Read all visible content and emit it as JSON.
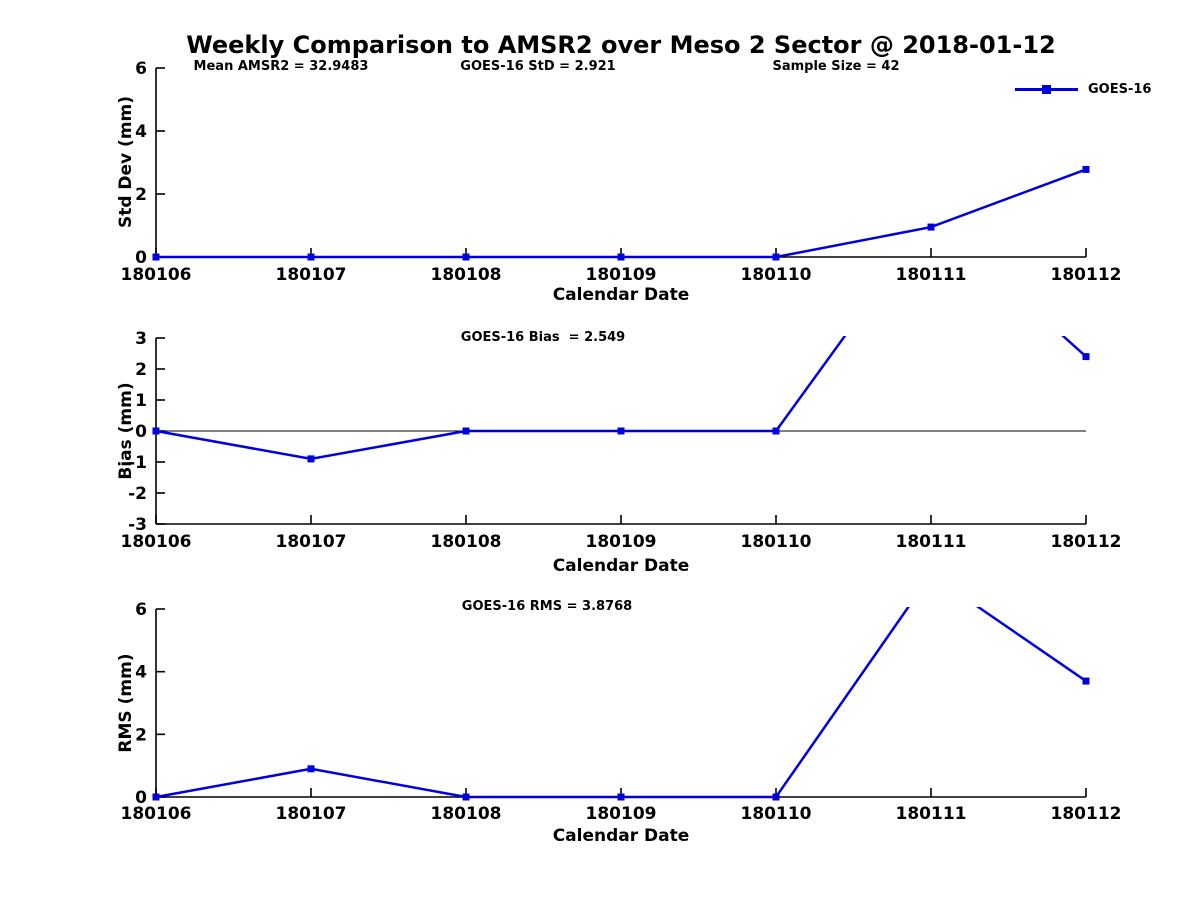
{
  "title": "Weekly Comparison to AMSR2 over Meso 2 Sector @ 2018-01-12",
  "legend": {
    "label": "GOES-16"
  },
  "colors": {
    "series": "#0000DD",
    "axis": "#000000",
    "background": "#FFFFFF"
  },
  "chart_data": [
    {
      "type": "line",
      "name": "std-dev",
      "series": "GOES-16",
      "annotations": [
        "Mean AMSR2 = 32.9483",
        "GOES-16 StD = 2.921",
        "Sample Size = 42"
      ],
      "categories": [
        "180106",
        "180107",
        "180108",
        "180109",
        "180110",
        "180111",
        "180112"
      ],
      "values": [
        0,
        0,
        0,
        0,
        0,
        0.95,
        2.78
      ],
      "xlabel": "Calendar Date",
      "ylabel": "Std Dev (mm)",
      "ylim": [
        0,
        6
      ],
      "yticks": [
        0,
        2,
        4,
        6
      ],
      "grid": false,
      "legend_position": "top-right"
    },
    {
      "type": "line",
      "name": "bias",
      "series": "GOES-16",
      "annotations": [
        "GOES-16 Bias  = 2.549"
      ],
      "categories": [
        "180106",
        "180107",
        "180108",
        "180109",
        "180110",
        "180111",
        "180112"
      ],
      "values": [
        0,
        -0.9,
        0,
        0,
        0,
        6.9,
        2.4
      ],
      "xlabel": "Calendar Date",
      "ylabel": "Bias (mm)",
      "ylim": [
        -3,
        3
      ],
      "yticks": [
        3,
        2,
        1,
        0,
        -1,
        -2,
        -3
      ],
      "zero_line": true,
      "grid": false
    },
    {
      "type": "line",
      "name": "rms",
      "series": "GOES-16",
      "annotations": [
        "GOES-16 RMS = 3.8768"
      ],
      "categories": [
        "180106",
        "180107",
        "180108",
        "180109",
        "180110",
        "180111",
        "180112"
      ],
      "values": [
        0,
        0.9,
        0,
        0,
        0,
        7.1,
        3.7
      ],
      "xlabel": "Calendar Date",
      "ylabel": "RMS (mm)",
      "ylim": [
        0,
        6
      ],
      "yticks": [
        0,
        2,
        4,
        6
      ],
      "grid": false
    }
  ]
}
